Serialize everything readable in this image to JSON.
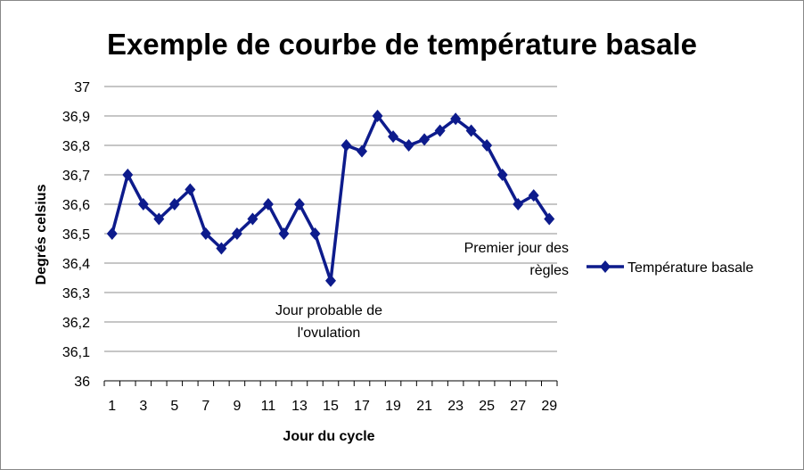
{
  "chart_data": {
    "type": "line",
    "title": "Exemple de courbe de température basale",
    "xlabel": "Jour du cycle",
    "ylabel": "Degrés celsius",
    "ylim": [
      36,
      37
    ],
    "yticks": [
      "36",
      "36,1",
      "36,2",
      "36,3",
      "36,4",
      "36,5",
      "36,6",
      "36,7",
      "36,8",
      "36,9",
      "37"
    ],
    "xtick_labels": [
      "1",
      "3",
      "5",
      "7",
      "9",
      "11",
      "13",
      "15",
      "17",
      "19",
      "21",
      "23",
      "25",
      "27",
      "29"
    ],
    "x": [
      1,
      2,
      3,
      4,
      5,
      6,
      7,
      8,
      9,
      10,
      11,
      12,
      13,
      14,
      15,
      16,
      17,
      18,
      19,
      20,
      21,
      22,
      23,
      24,
      25,
      26,
      27,
      28,
      29
    ],
    "series": [
      {
        "name": "Température basale",
        "color": "#0d1b8c",
        "marker": "diamond",
        "values": [
          36.5,
          36.7,
          36.6,
          36.55,
          36.6,
          36.65,
          36.5,
          36.45,
          36.5,
          36.55,
          36.6,
          36.5,
          36.6,
          36.5,
          36.34,
          36.8,
          36.78,
          36.9,
          36.83,
          36.8,
          36.82,
          36.85,
          36.89,
          36.85,
          36.8,
          36.7,
          36.6,
          36.63,
          36.55
        ]
      }
    ],
    "grid": true,
    "legend": "right",
    "annotations": [
      {
        "lines": [
          "Jour probable de",
          "l'ovulation"
        ]
      },
      {
        "lines": [
          "Premier jour des",
          "règles"
        ]
      }
    ]
  }
}
